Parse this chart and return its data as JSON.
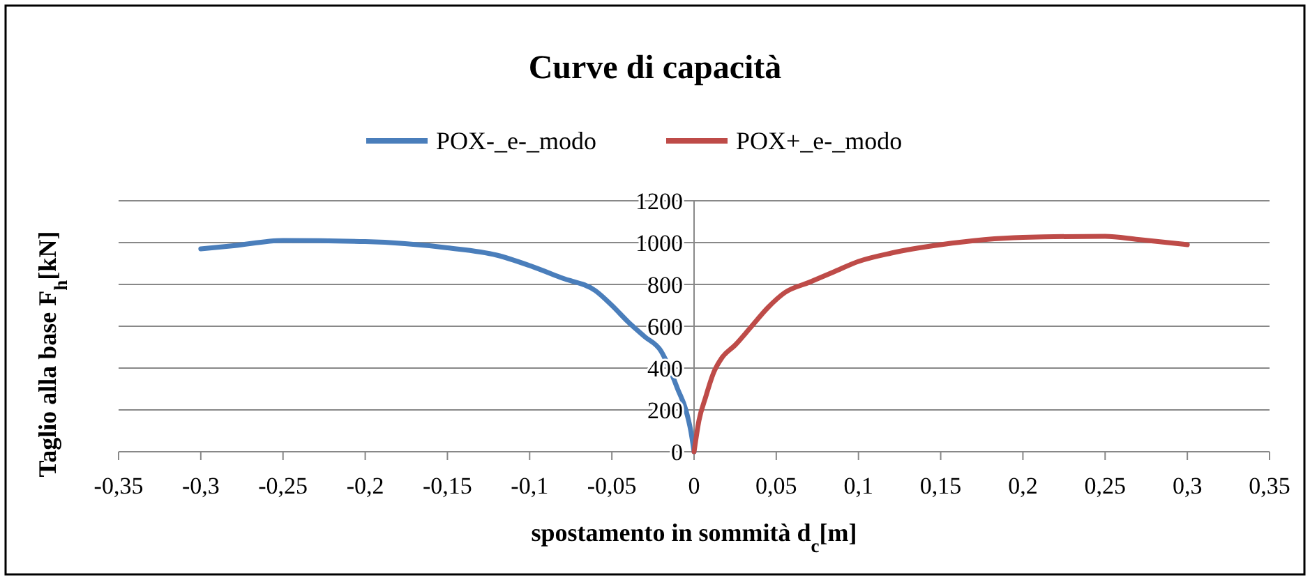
{
  "chart_data": {
    "type": "line",
    "title": "Curve di capacità",
    "xlabel": "spostamento in sommità d$_{c}$[m]",
    "ylabel": "Taglio alla base F$_{h}$[kN]",
    "legend": "top",
    "grid": "y",
    "marker": "none",
    "line_style": "solid",
    "xlim": [
      -0.35,
      0.35
    ],
    "ylim": [
      0,
      1200
    ],
    "xticks": [
      {
        "value": -0.35,
        "label": "-0,35"
      },
      {
        "value": -0.3,
        "label": "-0,3"
      },
      {
        "value": -0.25,
        "label": "-0,25"
      },
      {
        "value": -0.2,
        "label": "-0,2"
      },
      {
        "value": -0.15,
        "label": "-0,15"
      },
      {
        "value": -0.1,
        "label": "-0,1"
      },
      {
        "value": -0.05,
        "label": "-0,05"
      },
      0,
      {
        "value": 0.05,
        "label": "0,05"
      },
      {
        "value": 0.1,
        "label": "0,1"
      },
      {
        "value": 0.15,
        "label": "0,15"
      },
      {
        "value": 0.2,
        "label": "0,2"
      },
      {
        "value": 0.25,
        "label": "0,25"
      },
      {
        "value": 0.3,
        "label": "0,3"
      },
      {
        "value": 0.35,
        "label": "0,35"
      }
    ],
    "yticks": [
      0,
      200,
      400,
      600,
      800,
      1000,
      1200
    ],
    "series": [
      {
        "name": "POX-_e-_modo",
        "color": "#4a7ebb",
        "x": [
          -0.3,
          -0.28,
          -0.25,
          -0.2,
          -0.15,
          -0.12,
          -0.1,
          -0.08,
          -0.06,
          -0.05,
          -0.04,
          -0.03,
          -0.02,
          -0.015,
          -0.01,
          -0.005,
          -0.002,
          0
        ],
        "values": [
          970,
          985,
          1010,
          1005,
          975,
          940,
          890,
          830,
          770,
          700,
          620,
          550,
          480,
          400,
          300,
          200,
          100,
          0
        ]
      },
      {
        "name": "POX+_e-_modo",
        "color": "#be4b48",
        "x": [
          0,
          0.003,
          0.007,
          0.012,
          0.017,
          0.025,
          0.035,
          0.045,
          0.055,
          0.07,
          0.085,
          0.1,
          0.12,
          0.15,
          0.2,
          0.25,
          0.27,
          0.3
        ],
        "values": [
          0,
          150,
          260,
          380,
          450,
          510,
          600,
          690,
          760,
          810,
          860,
          910,
          950,
          990,
          1025,
          1030,
          1015,
          990
        ]
      }
    ]
  }
}
